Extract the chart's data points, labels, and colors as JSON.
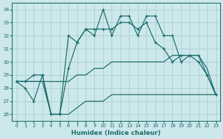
{
  "xlabel": "Humidex (Indice chaleur)",
  "background_color": "#cce8ea",
  "grid_color": "#a0c8cc",
  "line_color": "#1a6b6b",
  "xlim": [
    -0.5,
    23.5
  ],
  "ylim": [
    25.5,
    34.5
  ],
  "yticks": [
    26,
    27,
    28,
    29,
    30,
    31,
    32,
    33,
    34
  ],
  "xticks": [
    0,
    1,
    2,
    3,
    4,
    5,
    6,
    7,
    8,
    9,
    10,
    11,
    12,
    13,
    14,
    15,
    16,
    17,
    18,
    19,
    20,
    21,
    22,
    23
  ],
  "hours": [
    0,
    1,
    2,
    3,
    4,
    5,
    6,
    7,
    8,
    9,
    10,
    11,
    12,
    13,
    14,
    15,
    16,
    17,
    18,
    19,
    20,
    21,
    22,
    23
  ],
  "line_main": [
    28.5,
    28.0,
    27.0,
    29.0,
    26.0,
    26.0,
    32.0,
    31.5,
    32.5,
    32.0,
    34.0,
    32.0,
    33.5,
    33.5,
    32.0,
    33.5,
    33.5,
    32.0,
    32.0,
    30.0,
    30.5,
    30.5,
    29.0,
    27.5
  ],
  "line_smooth": [
    28.5,
    28.5,
    29.0,
    29.0,
    26.0,
    26.0,
    29.5,
    31.5,
    32.5,
    32.5,
    32.5,
    32.5,
    33.0,
    33.0,
    32.5,
    33.0,
    31.5,
    31.0,
    30.0,
    30.5,
    30.5,
    30.0,
    29.0,
    27.5
  ],
  "line_upper": [
    28.5,
    28.5,
    28.5,
    28.5,
    28.5,
    28.5,
    28.5,
    29.0,
    29.0,
    29.5,
    29.5,
    30.0,
    30.0,
    30.0,
    30.0,
    30.0,
    30.0,
    30.0,
    30.5,
    30.5,
    30.5,
    30.5,
    29.5,
    27.5
  ],
  "line_lower": [
    28.5,
    28.5,
    28.5,
    28.5,
    26.0,
    26.0,
    26.0,
    26.5,
    27.0,
    27.0,
    27.0,
    27.5,
    27.5,
    27.5,
    27.5,
    27.5,
    27.5,
    27.5,
    27.5,
    27.5,
    27.5,
    27.5,
    27.5,
    27.5
  ]
}
